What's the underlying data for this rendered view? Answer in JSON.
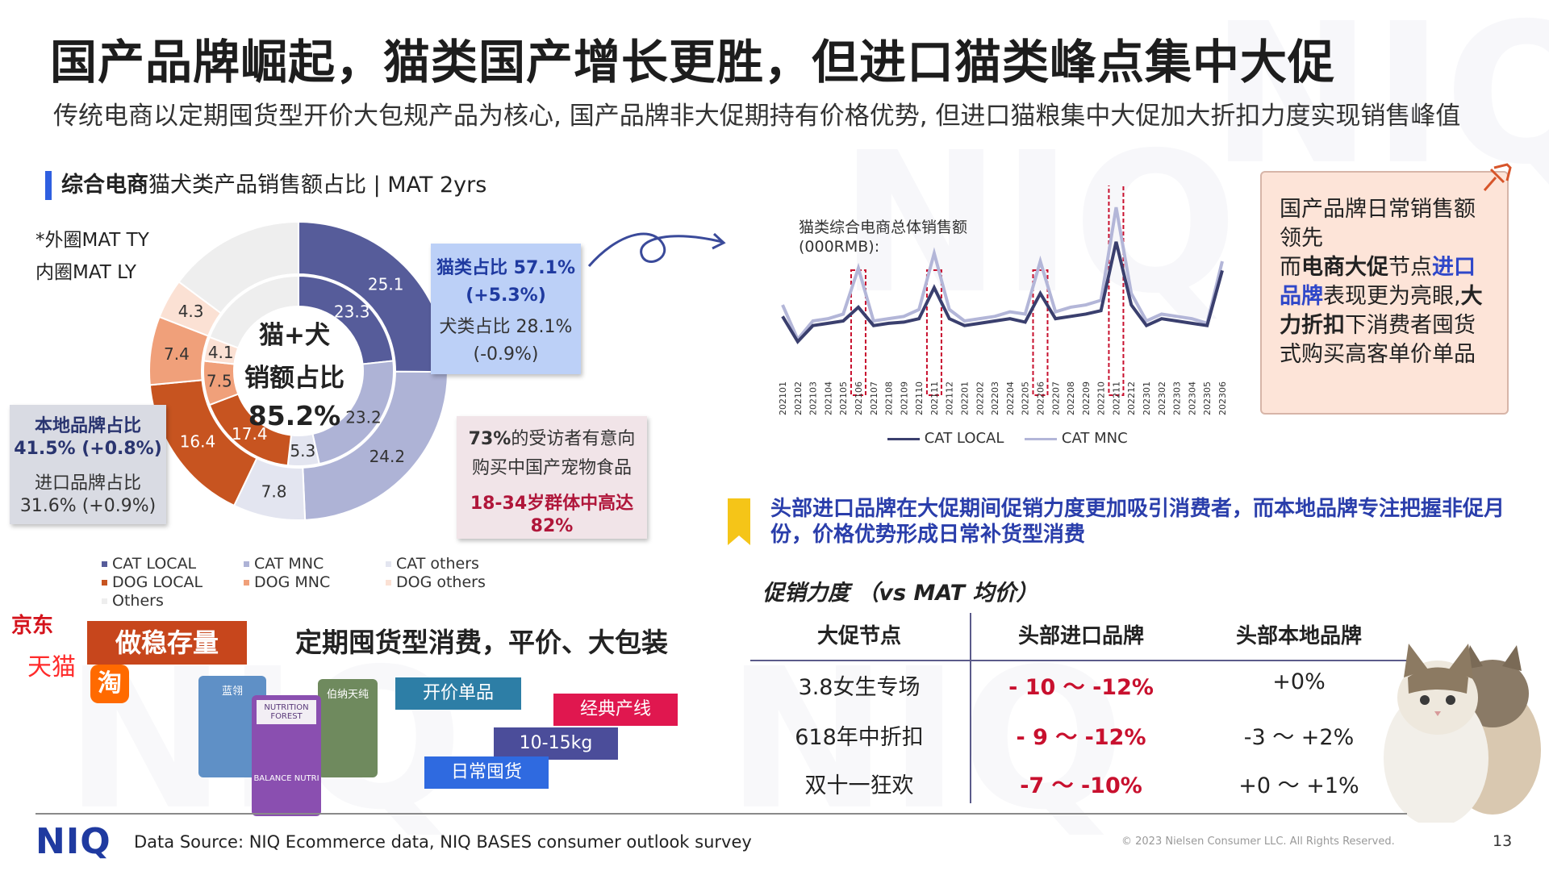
{
  "header": {
    "title": "国产品牌崛起，猫类国产增长更胜，但进口猫类峰点集中大促",
    "subtitle": "传统电商以定期囤货型开价大包规产品为核心, 国产品牌非大促期持有价格优势, 但进口猫粮集中大促加大折扣力度实现销售峰值"
  },
  "left_section": {
    "title_bold": "综合电商",
    "title_rest": "猫犬类产品销售额占比 | MAT 2yrs",
    "note_outer": "*外圈MAT TY",
    "note_inner": "内圈MAT LY",
    "center_l1": "猫+犬",
    "center_l2": "销额占比",
    "center_l3": "85.2%",
    "cat_box": {
      "l1": "猫类占比 57.1%",
      "l2": "(+5.3%)",
      "l3": "犬类占比 28.1%",
      "l4": "(-0.9%)"
    },
    "brand_box": {
      "l1": "本地品牌占比",
      "l2": "41.5% (+0.8%)",
      "l3": "进口品牌占比",
      "l4": "31.6% (+0.9%)"
    },
    "survey_box": {
      "l1_bold": "73%",
      "l1_rest": "的受访者有意向",
      "l2": "购买中国产宠物食品",
      "l3": "18-34岁群体中高达",
      "l4": "82%"
    },
    "legend": [
      "CAT LOCAL",
      "CAT MNC",
      "CAT others",
      "DOG LOCAL",
      "DOG MNC",
      "DOG others",
      "Others"
    ]
  },
  "colors": {
    "CAT LOCAL": "#565c9a",
    "CAT MNC": "#aeb3d6",
    "CAT others": "#e3e5f0",
    "DOG LOCAL": "#c75420",
    "DOG MNC": "#f0a07a",
    "DOG others": "#fbe1d4",
    "Others": "#eeeeee"
  },
  "chart_data": [
    {
      "type": "pie",
      "title": "",
      "labels": [
        "CAT LOCAL",
        "CAT MNC",
        "CAT others",
        "DOG LOCAL",
        "DOG MNC",
        "DOG others",
        "Others"
      ],
      "series": [
        {
          "name": "外圈MAT TY",
          "values": [
            25.1,
            24.2,
            7.8,
            16.4,
            7.4,
            4.3,
            14.8
          ]
        },
        {
          "name": "内圈MAT LY",
          "values": [
            23.3,
            23.2,
            5.3,
            17.4,
            7.5,
            4.1,
            19.2
          ]
        }
      ],
      "labels_shown": {
        "outer": [
          "25.1",
          "24.2",
          "7.8",
          "16.4",
          "7.4",
          "4.3"
        ],
        "inner": [
          "23.3",
          "23.2",
          "5.3",
          "17.4",
          "7.5",
          "4.1"
        ]
      }
    },
    {
      "type": "line",
      "title": "猫类综合电商总体销售额",
      "ylabel": "(000RMB):",
      "x": [
        "202101",
        "202102",
        "202103",
        "202104",
        "202105",
        "202106",
        "202107",
        "202108",
        "202109",
        "202110",
        "202111",
        "202112",
        "202201",
        "202202",
        "202203",
        "202204",
        "202205",
        "202206",
        "202207",
        "202208",
        "202209",
        "202210",
        "202211",
        "202212",
        "202301",
        "202302",
        "202303",
        "202304",
        "202305",
        "202306"
      ],
      "series": [
        {
          "name": "CAT LOCAL",
          "values": [
            30,
            8,
            22,
            24,
            26,
            38,
            22,
            24,
            25,
            28,
            55,
            28,
            22,
            24,
            26,
            28,
            25,
            50,
            28,
            30,
            32,
            35,
            95,
            40,
            22,
            28,
            26,
            24,
            22,
            70
          ]
        },
        {
          "name": "CAT MNC",
          "values": [
            40,
            10,
            26,
            28,
            32,
            72,
            26,
            28,
            30,
            36,
            85,
            36,
            26,
            28,
            30,
            34,
            32,
            78,
            34,
            38,
            40,
            44,
            125,
            50,
            26,
            32,
            30,
            28,
            24,
            78
          ]
        }
      ],
      "highlighted": [
        "202106",
        "202111",
        "202206",
        "202211"
      ]
    }
  ],
  "right_top": {
    "peach_l1": "国产品牌日常销售额领先",
    "peach_l2a": "而",
    "peach_l2b": "电商大促",
    "peach_l2c": "节点",
    "peach_l2d": "进口品牌",
    "peach_l2e": "表现更为亮眼,",
    "peach_l3a": "大力折扣",
    "peach_l3b": "下消费者囤货式购买高客单价单品"
  },
  "right_bottom": {
    "headline": "头部进口品牌在大促期间促销力度更加吸引消费者，而本地品牌专注把握非促月份，价格优势形成日常补货型消费",
    "promo_label": "促销力度 （vs MAT 均价）",
    "table": {
      "headers": [
        "大促节点",
        "头部进口品牌",
        "头部本地品牌"
      ],
      "rows": [
        [
          "3.8女生专场",
          "- 10 ～ -12%",
          "+0%"
        ],
        [
          "618年中折扣",
          "- 9 ～ -12%",
          "-3 ～ +2%"
        ],
        [
          "双十一狂欢",
          "-7 ～ -10%",
          "+0 ～ +1%"
        ]
      ]
    }
  },
  "bottom_left": {
    "platforms": [
      "京东",
      "天猫",
      "淘"
    ],
    "tag_main": "做稳存量",
    "title": "定期囤货型消费，平价、大包装",
    "tags": [
      "开价单品",
      "经典产线",
      "10-15kg",
      "日常囤货"
    ],
    "product1": "蓝翎",
    "product2": "NUTRITION FOREST",
    "product2b": "BALANCE NUTRI",
    "product3": "伯纳天纯"
  },
  "footer": {
    "logo": "NIQ",
    "source": "Data Source: NIQ Ecommerce data, NIQ BASES consumer outlook survey",
    "copyright": "© 2023 Nielsen Consumer LLC. All Rights Reserved.",
    "page": "13"
  }
}
